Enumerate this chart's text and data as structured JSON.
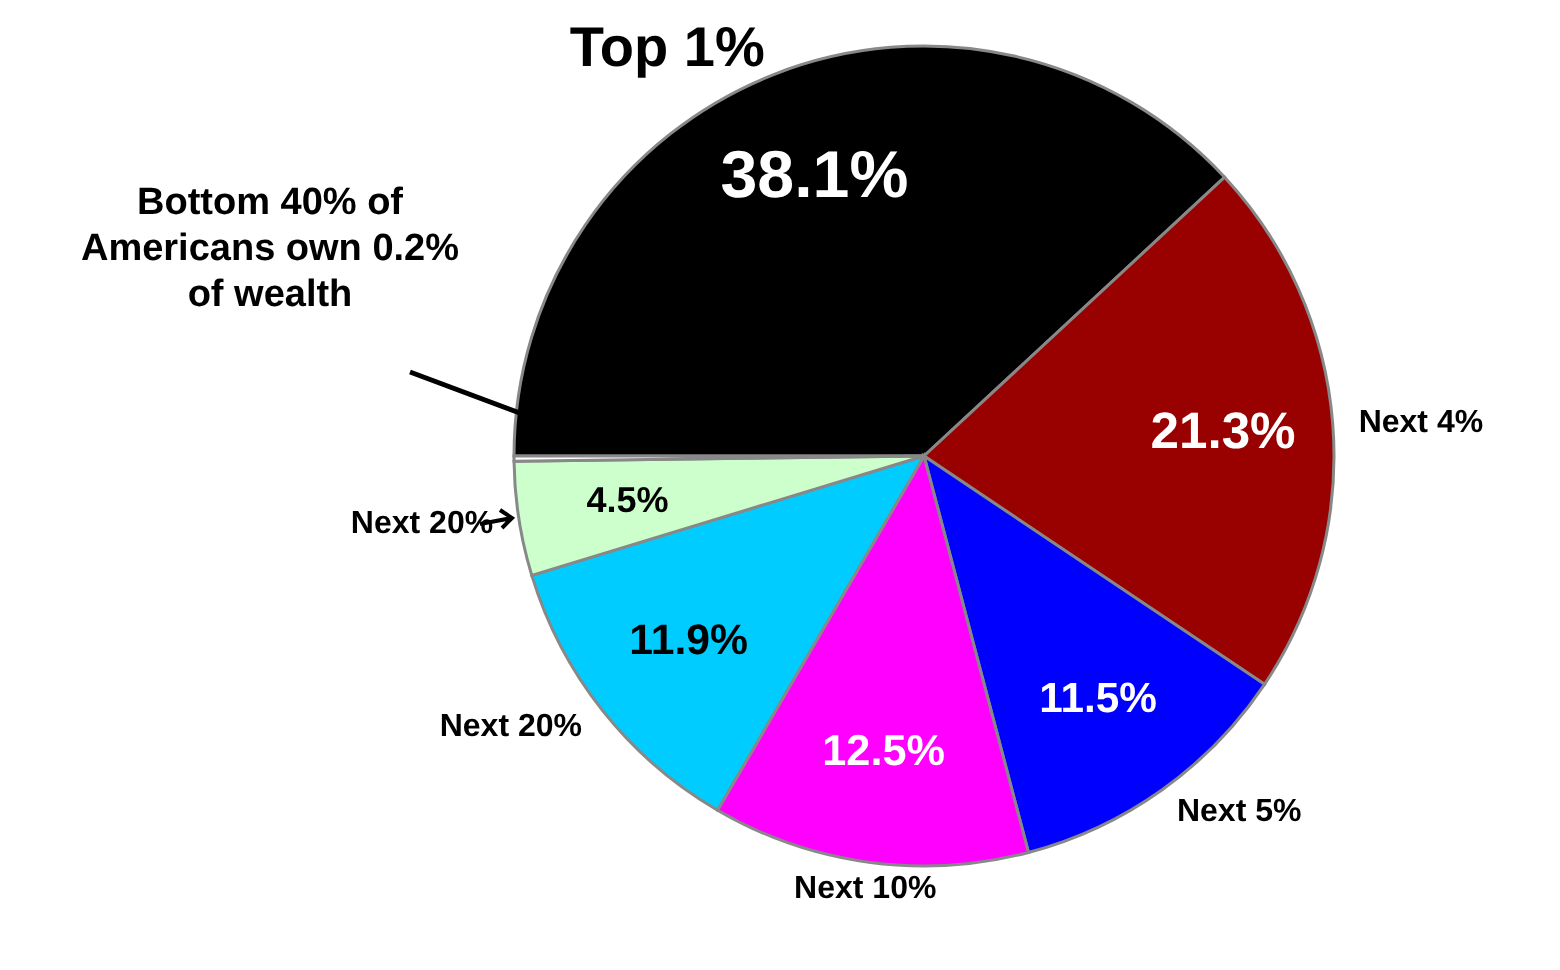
{
  "chart_data": {
    "type": "pie",
    "categories": [
      "Top 1%",
      "Next 4%",
      "Next 5%",
      "Next 10%",
      "Next 20%",
      "Next 20%",
      null
    ],
    "values": [
      38.1,
      21.3,
      11.5,
      12.5,
      11.9,
      4.5,
      0.2
    ],
    "colors": [
      "#000000",
      "#990000",
      "#0000ff",
      "#ff00ff",
      "#00ccff",
      "#ccffcc",
      "#ffffff"
    ],
    "value_labels": [
      "38.1%",
      "21.3%",
      "11.5%",
      "12.5%",
      "11.9%",
      "4.5%",
      null
    ],
    "annotations": [
      "Bottom 40% of Americans own 0.2% of wealth"
    ]
  }
}
